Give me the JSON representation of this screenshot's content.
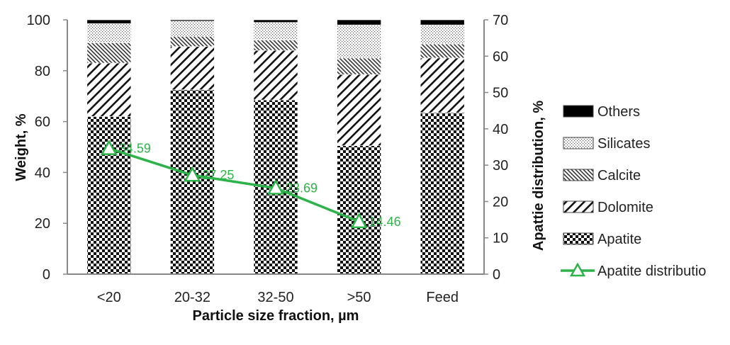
{
  "chart_data": {
    "type": "bar",
    "stacked": true,
    "categories": [
      "<20",
      "20-32",
      "32-50",
      ">50",
      "Feed"
    ],
    "xlabel": "Particle size fraction, µm",
    "ylabel": "Weight, %",
    "ylim": [
      0,
      100
    ],
    "yticks": [
      "0",
      "20",
      "40",
      "60",
      "80",
      "100"
    ],
    "y2label": "Apattie distribution, %",
    "y2lim": [
      0,
      70
    ],
    "y2ticks": [
      "0",
      "10",
      "20",
      "30",
      "40",
      "50",
      "60",
      "70"
    ],
    "grid": false,
    "legend_position": "right",
    "series": [
      {
        "name": "Apatite",
        "pattern": "checker",
        "values": [
          62,
          72.5,
          68.5,
          50.5,
          63.5
        ]
      },
      {
        "name": "Dolomite",
        "pattern": "diagonal",
        "values": [
          21,
          17,
          19.5,
          28,
          21.5
        ]
      },
      {
        "name": "Calcite",
        "pattern": "dense-diagonal",
        "values": [
          8,
          4,
          4,
          6.5,
          5.5
        ]
      },
      {
        "name": "Silicates",
        "pattern": "dots",
        "values": [
          7.5,
          6,
          7,
          13,
          7.5
        ]
      },
      {
        "name": "Others",
        "pattern": "solid",
        "values": [
          1.5,
          0.5,
          1,
          2,
          2
        ]
      }
    ],
    "line_series": {
      "name": "Apatite distributio",
      "axis": "right",
      "color": "#2db34a",
      "x": [
        "<20",
        "20-32",
        "32-50",
        ">50"
      ],
      "values": [
        34.59,
        27.25,
        23.69,
        14.46
      ],
      "labels": [
        "34.59",
        "27.25",
        "23.69",
        "14.46"
      ]
    }
  }
}
